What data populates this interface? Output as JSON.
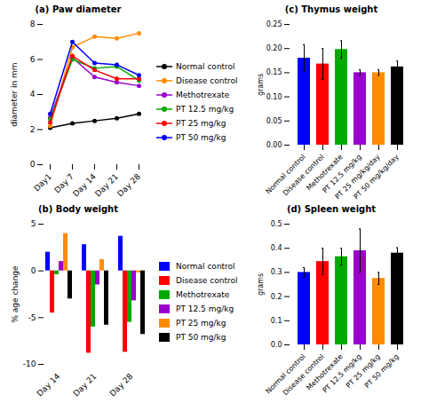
{
  "chart_data": [
    {
      "type": "line",
      "title": "(a) Paw diameter",
      "ylabel": "diameter in mm",
      "categories": [
        "Day1",
        "Day 7",
        "Day 14",
        "Day 21",
        "Day 28"
      ],
      "series": [
        {
          "name": "Normal control",
          "color": "#000000",
          "values": [
            2.1,
            2.35,
            2.5,
            2.65,
            2.9
          ]
        },
        {
          "name": "Disease control",
          "color": "#FF8C00",
          "values": [
            2.2,
            6.7,
            7.3,
            7.2,
            7.5
          ]
        },
        {
          "name": "Methotrexate",
          "color": "#9900CC",
          "values": [
            2.7,
            6.1,
            5.0,
            4.7,
            4.5
          ]
        },
        {
          "name": "PT 12.5 mg/kg",
          "color": "#00AA00",
          "values": [
            2.6,
            6.0,
            5.5,
            5.6,
            4.8
          ]
        },
        {
          "name": "PT 25 mg/kg",
          "color": "#FF0000",
          "values": [
            2.4,
            6.2,
            5.4,
            4.9,
            4.9
          ]
        },
        {
          "name": "PT 50 mg/kg",
          "color": "#0000FF",
          "values": [
            2.9,
            7.0,
            5.8,
            5.7,
            5.1
          ]
        }
      ],
      "marker": "circle",
      "ylim": [
        0,
        8
      ],
      "yticks": [
        0,
        2,
        4,
        6,
        8
      ],
      "legend": "right"
    },
    {
      "type": "bar",
      "title": "(b) Body weight",
      "ylabel": "% age change",
      "categories": [
        "Day 14",
        "Day 21",
        "Day 28"
      ],
      "series": [
        {
          "name": "Normal control",
          "color": "#0000FF",
          "values": [
            2.0,
            2.8,
            3.7
          ]
        },
        {
          "name": "Disease control",
          "color": "#FF0000",
          "values": [
            -4.5,
            -8.8,
            -8.7
          ]
        },
        {
          "name": "Methotrexate",
          "color": "#00AA00",
          "values": [
            -0.4,
            -6.0,
            -5.5
          ]
        },
        {
          "name": "PT 12.5 mg/kg",
          "color": "#9900CC",
          "values": [
            1.0,
            -1.5,
            -3.2
          ]
        },
        {
          "name": "PT 25 mg/kg",
          "color": "#FF8C00",
          "values": [
            4.0,
            1.2,
            -0.2
          ]
        },
        {
          "name": "PT 50 mg/kg",
          "color": "#000000",
          "values": [
            -3.0,
            -5.8,
            -6.8
          ]
        }
      ],
      "ylim": [
        -10,
        5
      ],
      "yticks": [
        -10,
        -5,
        0,
        5
      ],
      "legend": "right"
    },
    {
      "type": "bar",
      "title": "(c) Thymus weight",
      "ylabel": "grams",
      "categories": [
        "Normal control",
        "Disease control",
        "Methotrexate",
        "PT 12.5 mg/kg",
        "PT 25 mg/kg/day",
        "PT 50 mg/kg/day"
      ],
      "values": [
        0.18,
        0.168,
        0.198,
        0.15,
        0.15,
        0.162
      ],
      "errors": [
        0.028,
        0.032,
        0.018,
        0.006,
        0.006,
        0.012
      ],
      "colors": [
        "#0000FF",
        "#FF0000",
        "#00AA00",
        "#9900CC",
        "#FF8C00",
        "#000000"
      ],
      "ylim": [
        0.0,
        0.25
      ],
      "yticks": [
        {
          "value": 0,
          "label": "0.00"
        },
        0.05,
        {
          "value": 0.1,
          "label": "0.10"
        },
        0.15,
        {
          "value": 0.2,
          "label": "0.20"
        },
        0.25
      ]
    },
    {
      "type": "bar",
      "title": "(d) Spleen weight",
      "ylabel": "grams",
      "categories": [
        "Normal control",
        "Disease control",
        "Methotrexate",
        "PT 12.5 mg/kg",
        "PT 25 mg/kg",
        "PT 50 mg/kg"
      ],
      "values": [
        0.3,
        0.345,
        0.365,
        0.39,
        0.275,
        0.38
      ],
      "errors": [
        0.02,
        0.055,
        0.035,
        0.09,
        0.025,
        0.022
      ],
      "colors": [
        "#0000FF",
        "#FF0000",
        "#00AA00",
        "#9900CC",
        "#FF8C00",
        "#000000"
      ],
      "ylim": [
        0.0,
        0.5
      ],
      "yticks": [
        {
          "value": 0,
          "label": "0.0"
        },
        0.1,
        0.2,
        0.3,
        0.4,
        0.5
      ]
    }
  ]
}
